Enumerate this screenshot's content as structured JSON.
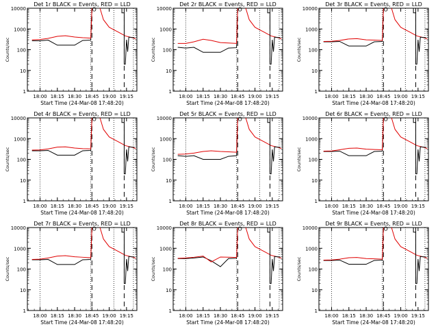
{
  "figure": {
    "xlabel": "Start Time (24-Mar-08 17:48:20)",
    "ylabel": "Counts/sec",
    "x_tick_labels": [
      "18:00",
      "18:15",
      "18:30",
      "18:45",
      "19:00",
      "19:15"
    ],
    "y_tick_labels": [
      "1",
      "10",
      "100",
      "1000",
      "10000"
    ],
    "colors": {
      "events": "#000000",
      "lld": "#e00000"
    },
    "legend_text": "BLACK = Events, RED = LLD",
    "marker_symbol": "O"
  },
  "chart_data": [
    {
      "type": "line",
      "title": "Det 1r BLACK = Events, RED = LLD",
      "xlabel": "Start Time (24-Mar-08 17:48:20)",
      "ylabel": "Counts/sec",
      "y_scale": "log",
      "ylim": [
        1,
        10000
      ],
      "grid": false,
      "x": [
        "17:53",
        "18:00",
        "18:07",
        "18:15",
        "18:22",
        "18:30",
        "18:37",
        "18:44",
        "18:45"
      ],
      "series": [
        {
          "name": "Events",
          "color": "#000000",
          "values": [
            270,
            270,
            290,
            165,
            165,
            165,
            280,
            290,
            10000
          ]
        },
        {
          "name": "LLD",
          "color": "#e00000",
          "values": [
            300,
            310,
            350,
            440,
            470,
            410,
            380,
            360,
            10000
          ]
        }
      ]
    },
    {
      "type": "line",
      "title": "Det 2r BLACK = Events, RED = LLD",
      "xlabel": "Start Time (24-Mar-08 17:48:20)",
      "ylabel": "Counts/sec",
      "y_scale": "log",
      "ylim": [
        1,
        10000
      ],
      "grid": false,
      "x": [
        "17:53",
        "18:00",
        "18:07",
        "18:15",
        "18:22",
        "18:30",
        "18:37",
        "18:44",
        "18:45"
      ],
      "series": [
        {
          "name": "Events",
          "color": "#000000",
          "values": [
            130,
            120,
            130,
            75,
            75,
            75,
            120,
            125,
            10000
          ]
        },
        {
          "name": "LLD",
          "color": "#e00000",
          "values": [
            200,
            200,
            240,
            320,
            280,
            220,
            210,
            200,
            10000
          ]
        }
      ]
    },
    {
      "type": "line",
      "title": "Det 3r BLACK = Events, RED = LLD",
      "xlabel": "Start Time (24-Mar-08 17:48:20)",
      "ylabel": "Counts/sec",
      "y_scale": "log",
      "ylim": [
        1,
        10000
      ],
      "grid": false,
      "x": [
        "17:53",
        "18:00",
        "18:07",
        "18:15",
        "18:22",
        "18:30",
        "18:37",
        "18:44",
        "18:45"
      ],
      "series": [
        {
          "name": "Events",
          "color": "#000000",
          "values": [
            240,
            240,
            250,
            150,
            150,
            150,
            240,
            250,
            10000
          ]
        },
        {
          "name": "LLD",
          "color": "#e00000",
          "values": [
            250,
            255,
            280,
            330,
            340,
            300,
            290,
            280,
            10000
          ]
        }
      ]
    },
    {
      "type": "line",
      "title": "Det 4r BLACK = Events, RED = LLD",
      "xlabel": "Start Time (24-Mar-08 17:48:20)",
      "ylabel": "Counts/sec",
      "y_scale": "log",
      "ylim": [
        1,
        10000
      ],
      "grid": false,
      "x": [
        "17:53",
        "18:00",
        "18:07",
        "18:15",
        "18:22",
        "18:30",
        "18:37",
        "18:44",
        "18:45"
      ],
      "series": [
        {
          "name": "Events",
          "color": "#000000",
          "values": [
            260,
            260,
            270,
            160,
            160,
            160,
            260,
            270,
            10000
          ]
        },
        {
          "name": "LLD",
          "color": "#e00000",
          "values": [
            280,
            285,
            320,
            390,
            400,
            350,
            330,
            320,
            10000
          ]
        }
      ]
    },
    {
      "type": "line",
      "title": "Det 5r BLACK = Events, RED = LLD",
      "xlabel": "Start Time (24-Mar-08 17:48:20)",
      "ylabel": "Counts/sec",
      "y_scale": "log",
      "ylim": [
        1,
        10000
      ],
      "grid": false,
      "x": [
        "17:53",
        "18:00",
        "18:07",
        "18:15",
        "18:22",
        "18:30",
        "18:37",
        "18:44",
        "18:45"
      ],
      "series": [
        {
          "name": "Events",
          "color": "#000000",
          "values": [
            150,
            140,
            150,
            100,
            100,
            100,
            140,
            150,
            10000
          ]
        },
        {
          "name": "LLD",
          "color": "#e00000",
          "values": [
            175,
            180,
            200,
            240,
            260,
            240,
            230,
            220,
            10000
          ]
        }
      ]
    },
    {
      "type": "line",
      "title": "Det 6r BLACK = Events, RED = LLD",
      "xlabel": "Start Time (24-Mar-08 17:48:20)",
      "ylabel": "Counts/sec",
      "y_scale": "log",
      "ylim": [
        1,
        10000
      ],
      "grid": false,
      "x": [
        "17:53",
        "18:00",
        "18:07",
        "18:15",
        "18:22",
        "18:30",
        "18:37",
        "18:44",
        "18:45"
      ],
      "series": [
        {
          "name": "Events",
          "color": "#000000",
          "values": [
            240,
            240,
            250,
            150,
            150,
            150,
            240,
            250,
            10000
          ]
        },
        {
          "name": "LLD",
          "color": "#e00000",
          "values": [
            250,
            255,
            290,
            340,
            350,
            310,
            300,
            290,
            10000
          ]
        }
      ]
    },
    {
      "type": "line",
      "title": "Det 7r BLACK = Events, RED = LLD",
      "xlabel": "Start Time (24-Mar-08 17:48:20)",
      "ylabel": "Counts/sec",
      "y_scale": "log",
      "ylim": [
        1,
        10000
      ],
      "grid": false,
      "x": [
        "17:53",
        "18:00",
        "18:07",
        "18:15",
        "18:22",
        "18:30",
        "18:37",
        "18:44",
        "18:45"
      ],
      "series": [
        {
          "name": "Events",
          "color": "#000000",
          "values": [
            280,
            280,
            290,
            165,
            165,
            165,
            280,
            290,
            10000
          ]
        },
        {
          "name": "LLD",
          "color": "#e00000",
          "values": [
            290,
            300,
            340,
            420,
            440,
            390,
            370,
            350,
            10000
          ]
        }
      ]
    },
    {
      "type": "line",
      "title": "Det 8r BLACK = Events, RED = LLD",
      "xlabel": "Start Time (24-Mar-08 17:48:20)",
      "ylabel": "Counts/sec",
      "y_scale": "log",
      "ylim": [
        1,
        10000
      ],
      "grid": false,
      "x": [
        "17:53",
        "18:00",
        "18:07",
        "18:15",
        "18:22",
        "18:30",
        "18:37",
        "18:44",
        "18:45"
      ],
      "series": [
        {
          "name": "Events",
          "color": "#000000",
          "values": [
            320,
            320,
            340,
            380,
            250,
            130,
            320,
            330,
            10000
          ]
        },
        {
          "name": "LLD",
          "color": "#e00000",
          "values": [
            330,
            340,
            370,
            420,
            220,
            380,
            370,
            360,
            10000
          ]
        }
      ]
    },
    {
      "type": "line",
      "title": "Det 9r BLACK = Events, RED = LLD",
      "xlabel": "Start Time (24-Mar-08 17:48:20)",
      "ylabel": "Counts/sec",
      "y_scale": "log",
      "ylim": [
        1,
        10000
      ],
      "grid": false,
      "x": [
        "17:53",
        "18:00",
        "18:07",
        "18:15",
        "18:22",
        "18:30",
        "18:37",
        "18:44",
        "18:45"
      ],
      "series": [
        {
          "name": "Events",
          "color": "#000000",
          "values": [
            260,
            260,
            270,
            170,
            170,
            170,
            260,
            270,
            10000
          ]
        },
        {
          "name": "LLD",
          "color": "#e00000",
          "values": [
            270,
            275,
            300,
            350,
            360,
            320,
            310,
            300,
            10000
          ]
        }
      ]
    }
  ]
}
